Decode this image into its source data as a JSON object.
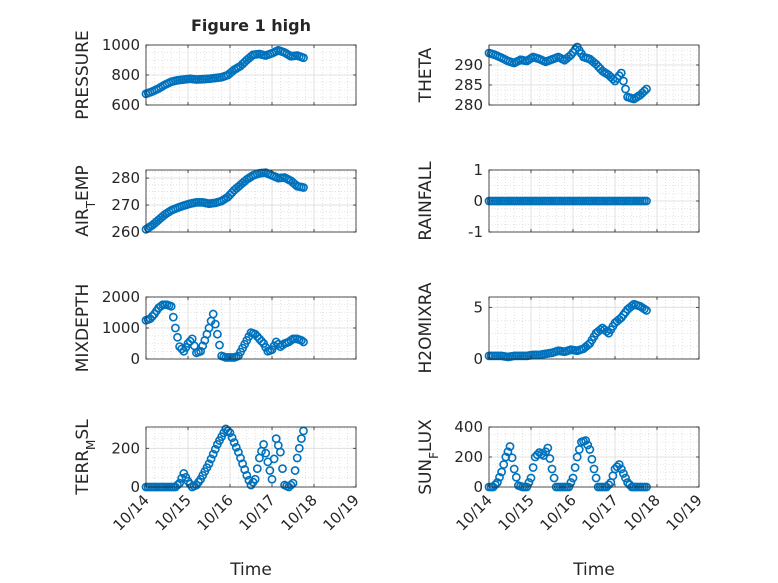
{
  "figure": {
    "title": "Figure 1 high",
    "x_tick_labels": [
      "10/14",
      "10/15",
      "10/16",
      "10/17",
      "10/18",
      "10/19"
    ],
    "x_label": "Time",
    "marker_color": "#0072BD",
    "background": "#ffffff"
  },
  "chart_data": [
    {
      "type": "scatter",
      "ylabel": "PRESSURE",
      "ylim": [
        600,
        1000
      ],
      "yticks": [
        600,
        800,
        1000
      ],
      "xlim": [
        0,
        5
      ],
      "grid": true,
      "x": [
        0.0,
        0.15,
        0.3,
        0.45,
        0.6,
        0.75,
        0.9,
        1.05,
        1.2,
        1.35,
        1.5,
        1.65,
        1.8,
        1.95,
        2.1,
        2.25,
        2.4,
        2.55,
        2.7,
        2.85,
        3.0,
        3.15,
        3.3,
        3.45,
        3.6,
        3.75
      ],
      "y": [
        675,
        690,
        710,
        735,
        755,
        765,
        770,
        775,
        770,
        772,
        775,
        780,
        785,
        800,
        835,
        860,
        900,
        935,
        940,
        930,
        945,
        965,
        950,
        925,
        930,
        915
      ]
    },
    {
      "type": "scatter",
      "ylabel": "THETA",
      "ylim": [
        280,
        295
      ],
      "yticks": [
        280,
        285,
        290
      ],
      "xlim": [
        0,
        5
      ],
      "grid": true,
      "x": [
        0.0,
        0.15,
        0.3,
        0.45,
        0.6,
        0.75,
        0.9,
        1.05,
        1.2,
        1.35,
        1.5,
        1.65,
        1.8,
        1.95,
        2.1,
        2.25,
        2.4,
        2.55,
        2.7,
        2.85,
        3.0,
        3.15,
        3.3,
        3.45,
        3.6,
        3.75
      ],
      "y": [
        293,
        292.5,
        291.8,
        291,
        290.5,
        291.3,
        291,
        292,
        291.5,
        290.8,
        291.4,
        292,
        291.2,
        292.5,
        294.5,
        292,
        291.5,
        290.2,
        288.5,
        287.5,
        286,
        288,
        282,
        281.5,
        282.5,
        284
      ]
    },
    {
      "type": "scatter",
      "ylabel": "AIR_TEMP",
      "ylim": [
        260,
        283
      ],
      "yticks": [
        260,
        270,
        280
      ],
      "xlim": [
        0,
        5
      ],
      "grid": true,
      "x": [
        0.0,
        0.15,
        0.3,
        0.45,
        0.6,
        0.75,
        0.9,
        1.05,
        1.2,
        1.35,
        1.5,
        1.65,
        1.8,
        1.95,
        2.1,
        2.25,
        2.4,
        2.55,
        2.7,
        2.85,
        3.0,
        3.15,
        3.3,
        3.45,
        3.6,
        3.75
      ],
      "y": [
        261,
        262.5,
        264.5,
        266.5,
        268,
        269,
        269.8,
        270.5,
        271,
        271,
        270.5,
        270.8,
        271.5,
        273,
        275.5,
        277.5,
        279.5,
        281,
        281.8,
        282,
        281,
        280,
        280.2,
        279,
        277,
        276.5
      ]
    },
    {
      "type": "scatter",
      "ylabel": "RAINFALL",
      "ylim": [
        -1,
        1
      ],
      "yticks": [
        -1,
        0,
        1
      ],
      "xlim": [
        0,
        5
      ],
      "grid": true,
      "x": [
        0.0,
        0.15,
        0.3,
        0.45,
        0.6,
        0.75,
        0.9,
        1.05,
        1.2,
        1.35,
        1.5,
        1.65,
        1.8,
        1.95,
        2.1,
        2.25,
        2.4,
        2.55,
        2.7,
        2.85,
        3.0,
        3.15,
        3.3,
        3.45,
        3.6,
        3.75
      ],
      "y": [
        0,
        0,
        0,
        0,
        0,
        0,
        0,
        0,
        0,
        0,
        0,
        0,
        0,
        0,
        0,
        0,
        0,
        0,
        0,
        0,
        0,
        0,
        0,
        0,
        0,
        0
      ]
    },
    {
      "type": "scatter",
      "ylabel": "MIXDEPTH",
      "ylim": [
        0,
        2000
      ],
      "yticks": [
        0,
        1000,
        2000
      ],
      "xlim": [
        0,
        5
      ],
      "grid": true,
      "x": [
        0.0,
        0.1,
        0.2,
        0.3,
        0.4,
        0.5,
        0.6,
        0.7,
        0.8,
        0.9,
        1.0,
        1.1,
        1.2,
        1.3,
        1.4,
        1.5,
        1.6,
        1.7,
        1.8,
        1.9,
        2.0,
        2.1,
        2.2,
        2.3,
        2.4,
        2.5,
        2.6,
        2.7,
        2.8,
        2.9,
        3.0,
        3.1,
        3.2,
        3.3,
        3.4,
        3.5,
        3.6,
        3.7,
        3.75
      ],
      "y": [
        1250,
        1300,
        1450,
        1650,
        1750,
        1750,
        1700,
        1000,
        400,
        250,
        500,
        650,
        200,
        250,
        600,
        1000,
        1450,
        800,
        100,
        50,
        50,
        50,
        100,
        350,
        600,
        850,
        800,
        650,
        500,
        250,
        300,
        550,
        400,
        500,
        550,
        650,
        650,
        600,
        550
      ]
    },
    {
      "type": "scatter",
      "ylabel": "H2OMIXRA",
      "ylim": [
        0,
        6
      ],
      "yticks": [
        0,
        5
      ],
      "xlim": [
        0,
        5
      ],
      "grid": true,
      "x": [
        0.0,
        0.15,
        0.3,
        0.45,
        0.6,
        0.75,
        0.9,
        1.05,
        1.2,
        1.35,
        1.5,
        1.65,
        1.8,
        1.95,
        2.1,
        2.25,
        2.4,
        2.55,
        2.7,
        2.85,
        3.0,
        3.15,
        3.3,
        3.45,
        3.6,
        3.75
      ],
      "y": [
        0.3,
        0.3,
        0.3,
        0.2,
        0.3,
        0.3,
        0.3,
        0.4,
        0.4,
        0.5,
        0.6,
        0.8,
        0.7,
        0.9,
        0.8,
        1.0,
        1.5,
        2.5,
        3.0,
        2.5,
        3.5,
        4.0,
        4.8,
        5.3,
        5.1,
        4.7
      ]
    },
    {
      "type": "scatter",
      "ylabel": "TERR_MSL",
      "ylim": [
        0,
        310
      ],
      "yticks": [
        0,
        200
      ],
      "xlim": [
        0,
        5
      ],
      "grid": true,
      "x": [
        0.0,
        0.1,
        0.2,
        0.3,
        0.4,
        0.5,
        0.6,
        0.7,
        0.8,
        0.9,
        1.0,
        1.1,
        1.2,
        1.3,
        1.4,
        1.5,
        1.6,
        1.7,
        1.8,
        1.9,
        2.0,
        2.1,
        2.2,
        2.3,
        2.4,
        2.5,
        2.6,
        2.7,
        2.8,
        2.9,
        3.0,
        3.1,
        3.2,
        3.3,
        3.4,
        3.5,
        3.6,
        3.7,
        3.75
      ],
      "y": [
        0,
        0,
        0,
        0,
        0,
        0,
        0,
        0,
        20,
        70,
        30,
        0,
        10,
        40,
        80,
        120,
        170,
        220,
        260,
        300,
        280,
        230,
        180,
        120,
        60,
        10,
        40,
        150,
        220,
        130,
        40,
        250,
        180,
        10,
        0,
        20,
        150,
        250,
        290
      ]
    },
    {
      "type": "scatter",
      "ylabel": "SUN_FLUX",
      "ylim": [
        0,
        400
      ],
      "yticks": [
        0,
        200,
        400
      ],
      "xlim": [
        0,
        5
      ],
      "grid": true,
      "x": [
        0.0,
        0.1,
        0.2,
        0.3,
        0.4,
        0.5,
        0.6,
        0.7,
        0.8,
        0.9,
        1.0,
        1.1,
        1.2,
        1.3,
        1.4,
        1.5,
        1.6,
        1.7,
        1.8,
        1.9,
        2.0,
        2.1,
        2.2,
        2.3,
        2.4,
        2.5,
        2.6,
        2.7,
        2.8,
        2.9,
        3.0,
        3.1,
        3.2,
        3.3,
        3.4,
        3.5,
        3.6,
        3.7,
        3.75
      ],
      "y": [
        0,
        0,
        30,
        100,
        200,
        270,
        120,
        10,
        0,
        0,
        60,
        200,
        230,
        210,
        260,
        120,
        0,
        0,
        0,
        0,
        60,
        200,
        300,
        310,
        250,
        120,
        0,
        0,
        0,
        30,
        120,
        150,
        90,
        30,
        0,
        0,
        0,
        0,
        0
      ]
    }
  ]
}
